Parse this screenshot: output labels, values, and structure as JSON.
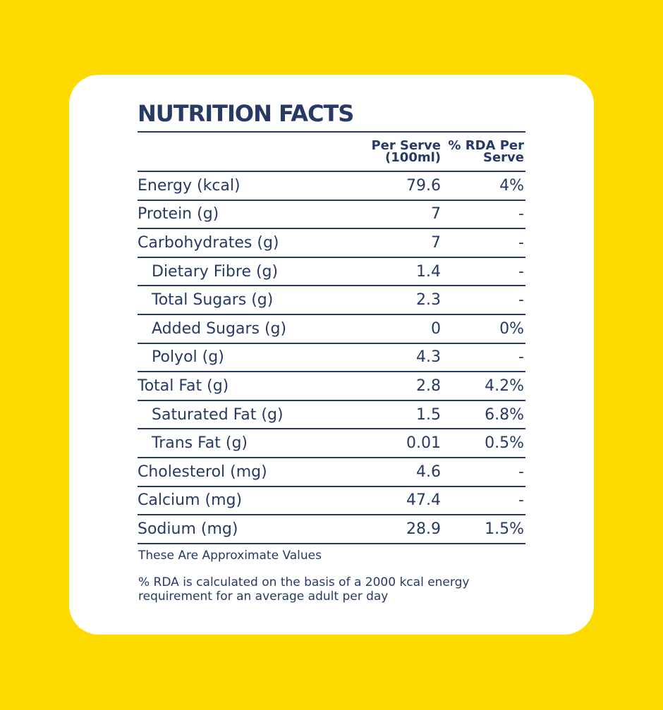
{
  "title": "NUTRITION FACTS",
  "columns": {
    "nutrient": "",
    "per_serve": "Per Serve (100ml)",
    "rda": "% RDA Per Serve"
  },
  "rows": [
    {
      "nutrient": "Energy (kcal)",
      "per_serve": "79.6",
      "rda": "4%",
      "indent": false
    },
    {
      "nutrient": "Protein (g)",
      "per_serve": "7",
      "rda": "-",
      "indent": false
    },
    {
      "nutrient": "Carbohydrates (g)",
      "per_serve": "7",
      "rda": "-",
      "indent": false
    },
    {
      "nutrient": "Dietary Fibre (g)",
      "per_serve": "1.4",
      "rda": "-",
      "indent": true
    },
    {
      "nutrient": "Total Sugars (g)",
      "per_serve": "2.3",
      "rda": "-",
      "indent": true
    },
    {
      "nutrient": "Added Sugars (g)",
      "per_serve": "0",
      "rda": "0%",
      "indent": true
    },
    {
      "nutrient": "Polyol (g)",
      "per_serve": "4.3",
      "rda": "-",
      "indent": true
    },
    {
      "nutrient": "Total Fat (g)",
      "per_serve": "2.8",
      "rda": "4.2%",
      "indent": false
    },
    {
      "nutrient": "Saturated Fat (g)",
      "per_serve": "1.5",
      "rda": "6.8%",
      "indent": true
    },
    {
      "nutrient": "Trans Fat (g)",
      "per_serve": "0.01",
      "rda": "0.5%",
      "indent": true
    },
    {
      "nutrient": "Cholesterol (mg)",
      "per_serve": "4.6",
      "rda": "-",
      "indent": false
    },
    {
      "nutrient": "Calcium (mg)",
      "per_serve": "47.4",
      "rda": "-",
      "indent": false
    },
    {
      "nutrient": "Sodium (mg)",
      "per_serve": "28.9",
      "rda": "1.5%",
      "indent": false
    }
  ],
  "notes": {
    "approx": "These Are Approximate Values",
    "rda_basis": "% RDA is calculated on the basis of a 2000 kcal energy requirement for an average adult per day"
  },
  "colors": {
    "background": "#FDDA00",
    "card": "#FFFFFF",
    "text": "#263A64"
  }
}
